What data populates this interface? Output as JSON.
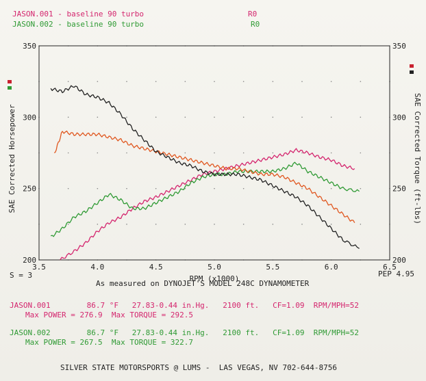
{
  "header": {
    "run1_label": "JASON.001 - baseline 90 turbo",
    "run1_tag": "R0",
    "run2_label": "JASON.002 - baseline 90 turbo",
    "run2_tag": "R0"
  },
  "chart_data": {
    "type": "line",
    "xlabel": "RPM (x1000)",
    "ylabel_left": "SAE Corrected Horsepower",
    "ylabel_right": "SAE Corrected Torque (ft-lbs)",
    "xlim": [
      3.5,
      6.5
    ],
    "ylim": [
      200,
      350
    ],
    "x_ticks": [
      "3.5",
      "4.0",
      "4.5",
      "5.0",
      "5.5",
      "6.0",
      "6.5"
    ],
    "y_ticks_left": [
      "200",
      "250",
      "300",
      "350"
    ],
    "y_ticks_right": [
      "200",
      "250",
      "300",
      "350"
    ],
    "series": [
      {
        "name": "JASON.001 power",
        "color": "#d4256e",
        "x": [
          3.68,
          3.8,
          3.9,
          4.0,
          4.1,
          4.2,
          4.3,
          4.4,
          4.5,
          4.6,
          4.7,
          4.8,
          4.9,
          5.0,
          5.1,
          5.2,
          5.3,
          5.4,
          5.5,
          5.6,
          5.7,
          5.8,
          5.9,
          6.0,
          6.1,
          6.2
        ],
        "y": [
          200,
          206,
          212,
          220,
          226,
          230,
          236,
          241,
          244,
          248,
          252,
          256,
          260,
          262,
          264,
          266,
          268,
          270,
          272,
          274,
          277,
          275,
          272,
          270,
          266,
          264
        ]
      },
      {
        "name": "JASON.002 power",
        "color": "#2f9a34",
        "x": [
          3.6,
          3.7,
          3.8,
          3.9,
          4.0,
          4.1,
          4.2,
          4.3,
          4.4,
          4.5,
          4.6,
          4.7,
          4.8,
          4.9,
          5.0,
          5.1,
          5.2,
          5.3,
          5.4,
          5.5,
          5.6,
          5.7,
          5.8,
          5.9,
          6.0,
          6.1,
          6.24
        ],
        "y": [
          216,
          222,
          230,
          234,
          240,
          246,
          242,
          236,
          236,
          240,
          244,
          248,
          254,
          258,
          260,
          260,
          262,
          262,
          262,
          262,
          264,
          268,
          262,
          258,
          254,
          250,
          248
        ]
      },
      {
        "name": "JASON.001 torque",
        "color": "#e0571f",
        "x": [
          3.63,
          3.7,
          3.8,
          3.9,
          4.0,
          4.1,
          4.2,
          4.3,
          4.4,
          4.5,
          4.6,
          4.7,
          4.8,
          4.9,
          5.0,
          5.1,
          5.2,
          5.3,
          5.4,
          5.5,
          5.6,
          5.7,
          5.8,
          5.9,
          6.0,
          6.1,
          6.2
        ],
        "y": [
          274,
          290,
          288,
          288,
          288,
          286,
          284,
          280,
          278,
          276,
          274,
          272,
          270,
          268,
          266,
          264,
          264,
          262,
          260,
          260,
          258,
          254,
          250,
          244,
          238,
          232,
          226
        ]
      },
      {
        "name": "JASON.002 torque",
        "color": "#222222",
        "x": [
          3.6,
          3.7,
          3.8,
          3.9,
          4.0,
          4.1,
          4.2,
          4.3,
          4.4,
          4.5,
          4.6,
          4.7,
          4.8,
          4.9,
          5.0,
          5.1,
          5.2,
          5.3,
          5.4,
          5.5,
          5.6,
          5.7,
          5.8,
          5.9,
          6.0,
          6.1,
          6.24
        ],
        "y": [
          320,
          318,
          322,
          316,
          314,
          310,
          302,
          292,
          284,
          276,
          272,
          268,
          266,
          262,
          260,
          260,
          260,
          258,
          256,
          252,
          248,
          244,
          238,
          230,
          222,
          214,
          208
        ]
      }
    ],
    "grid": "dotted"
  },
  "footer": {
    "s_label": "S = 3",
    "pep_label": "PEP 4.95",
    "measured": "As measured on DYNOJET'S MODEL 248C DYNAMOMETER",
    "run1_info": "JASON.001        86.7 °F   27.83-0.44 in.Hg.   2100 ft.   CF=1.09  RPM/MPH=52",
    "run1_max": "Max POWER = 276.9  Max TORQUE = 292.5",
    "run2_info": "JASON.002        86.7 °F   27.83-0.44 in.Hg.   2100 ft.   CF=1.09  RPM/MPH=52",
    "run2_max": "Max POWER = 267.5  Max TORQUE = 322.7",
    "shop": "SILVER STATE MOTORSPORTS @ LUMS -  LAS VEGAS, NV 702-644-8756"
  }
}
